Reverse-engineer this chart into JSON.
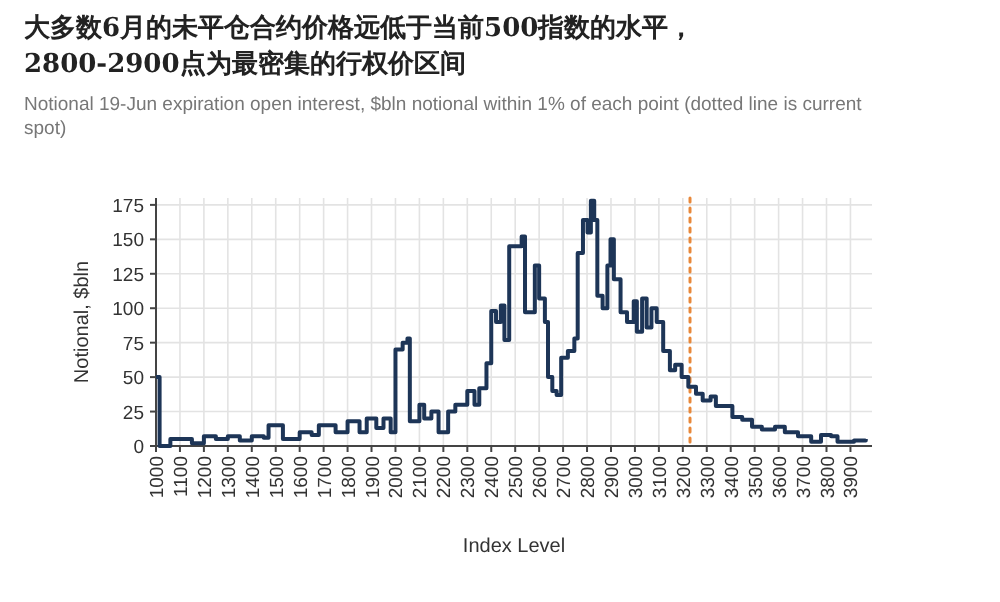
{
  "chart_data": {
    "type": "step",
    "title": "大多数6月的未平仓合约价格远低于当前500指数的水平，\n2800-2900点为最密集的行权价区间",
    "subtitle": "Notional 19-Jun expiration open interest, $bln notional within 1% of each point (dotted line is current spot)",
    "xlabel": "Index Level",
    "ylabel": "Notional, $bln",
    "xlim": [
      1000,
      3990
    ],
    "xticks": [
      1000,
      1100,
      1200,
      1300,
      1400,
      1500,
      1600,
      1700,
      1800,
      1900,
      2000,
      2100,
      2200,
      2300,
      2400,
      2500,
      2600,
      2700,
      2800,
      2900,
      3000,
      3100,
      3200,
      3300,
      3400,
      3500,
      3600,
      3700,
      3800,
      3900
    ],
    "ylim": [
      0,
      180
    ],
    "yticks": [
      0,
      25,
      50,
      75,
      100,
      125,
      150,
      175
    ],
    "grid": true,
    "x": [
      1000,
      1015,
      1060,
      1150,
      1200,
      1250,
      1300,
      1350,
      1400,
      1450,
      1470,
      1530,
      1600,
      1650,
      1680,
      1750,
      1800,
      1850,
      1880,
      1920,
      1950,
      1980,
      2000,
      2030,
      2050,
      2060,
      2100,
      2120,
      2150,
      2180,
      2220,
      2250,
      2300,
      2330,
      2350,
      2380,
      2400,
      2420,
      2440,
      2455,
      2475,
      2527,
      2541,
      2569,
      2582,
      2600,
      2624,
      2637,
      2655,
      2673,
      2692,
      2720,
      2747,
      2761,
      2783,
      2802,
      2816,
      2830,
      2843,
      2865,
      2885,
      2898,
      2912,
      2940,
      2967,
      2995,
      3008,
      3030,
      3049,
      3069,
      3091,
      3118,
      3146,
      3168,
      3195,
      3223,
      3255,
      3283,
      3316,
      3338,
      3379,
      3407,
      3448,
      3489,
      3530,
      3585,
      3626,
      3681,
      3736,
      3777,
      3819,
      3846,
      3915,
      3964
    ],
    "series": [
      {
        "color": "#1d3557",
        "values": [
          50,
          0,
          5,
          2,
          7,
          5,
          7,
          4,
          7,
          6,
          15,
          5,
          10,
          8,
          15,
          10,
          18,
          10,
          20,
          13,
          20,
          10,
          70,
          75,
          78,
          18,
          30,
          20,
          25,
          10,
          25,
          30,
          40,
          30,
          42,
          60,
          98,
          90,
          102,
          77,
          145,
          152,
          97,
          97,
          131,
          107,
          90,
          50,
          40,
          37,
          64,
          69,
          78,
          140,
          164,
          155,
          178,
          164,
          109,
          100,
          131,
          150,
          121,
          97,
          90,
          105,
          83,
          107,
          86,
          100,
          90,
          69,
          55,
          59,
          50,
          43,
          38,
          33,
          36,
          29,
          29,
          21,
          19,
          14,
          12,
          14,
          10,
          7,
          3,
          8,
          7,
          3,
          4,
          5
        ]
      }
    ],
    "ref_lines": [
      {
        "axis": "x",
        "value": 3230,
        "color": "#e8883a",
        "line_style": "dotted"
      }
    ]
  }
}
